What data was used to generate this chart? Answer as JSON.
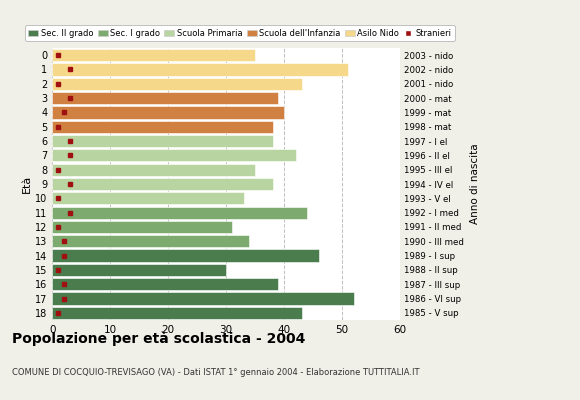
{
  "ages": [
    0,
    1,
    2,
    3,
    4,
    5,
    6,
    7,
    8,
    9,
    10,
    11,
    12,
    13,
    14,
    15,
    16,
    17,
    18
  ],
  "bar_values": [
    35,
    51,
    43,
    39,
    40,
    38,
    38,
    42,
    35,
    38,
    33,
    44,
    31,
    34,
    46,
    30,
    39,
    52,
    43
  ],
  "stranieri": [
    1,
    3,
    1,
    3,
    2,
    1,
    3,
    3,
    1,
    3,
    1,
    3,
    1,
    2,
    2,
    1,
    2,
    2,
    1
  ],
  "right_labels": [
    "2003 - nido",
    "2002 - nido",
    "2001 - nido",
    "2000 - mat",
    "1999 - mat",
    "1998 - mat",
    "1997 - I el",
    "1996 - II el",
    "1995 - III el",
    "1994 - IV el",
    "1993 - V el",
    "1992 - I med",
    "1991 - II med",
    "1990 - III med",
    "1989 - I sup",
    "1988 - II sup",
    "1987 - III sup",
    "1986 - VI sup",
    "1985 - V sup"
  ],
  "bar_colors": [
    "#f5d88a",
    "#f5d88a",
    "#f5d88a",
    "#d08040",
    "#d08040",
    "#d08040",
    "#b8d4a0",
    "#b8d4a0",
    "#b8d4a0",
    "#b8d4a0",
    "#b8d4a0",
    "#7daa6e",
    "#7daa6e",
    "#7daa6e",
    "#4a7c4e",
    "#4a7c4e",
    "#4a7c4e",
    "#4a7c4e",
    "#4a7c4e"
  ],
  "legend_labels": [
    "Sec. II grado",
    "Sec. I grado",
    "Scuola Primaria",
    "Scuola dell'Infanzia",
    "Asilo Nido",
    "Stranieri"
  ],
  "legend_colors": [
    "#4a7c4e",
    "#7daa6e",
    "#b8d4a0",
    "#d08040",
    "#f5d88a",
    "#a01010"
  ],
  "title": "Popolazione per età scolastica - 2004",
  "subtitle": "COMUNE DI COCQUIO-TREVISAGO (VA) - Dati ISTAT 1° gennaio 2004 - Elaborazione TUTTITALIA.IT",
  "ylabel_eta": "Età",
  "ylabel_anno": "Anno di nascita",
  "xlim": [
    0,
    60
  ],
  "xticks": [
    0,
    10,
    20,
    30,
    40,
    50,
    60
  ],
  "bg_color": "#f0f0e8",
  "plot_bg": "#ffffff",
  "stranieri_color": "#a01010"
}
